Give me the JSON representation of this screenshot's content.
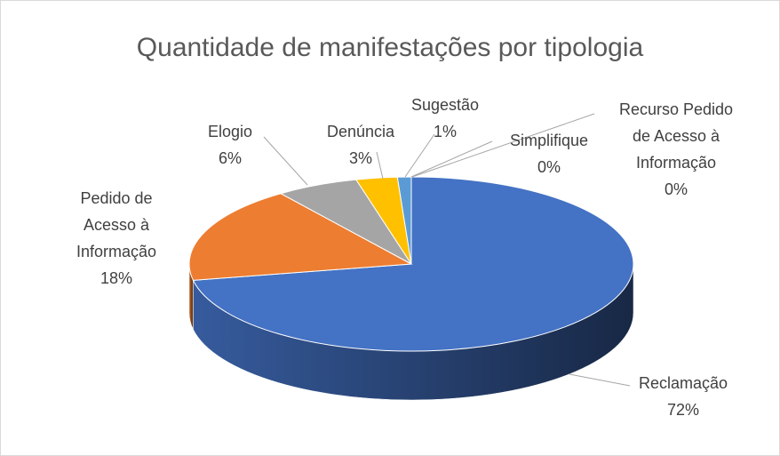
{
  "chart_data": {
    "type": "pie",
    "title": "Quantidade de manifestações por tipologia",
    "categories": [
      "Reclamação",
      "Pedido de Acesso à Informação",
      "Elogio",
      "Denúncia",
      "Sugestão",
      "Simplifique",
      "Recurso Pedido de Acesso à Informação"
    ],
    "values": [
      72,
      18,
      6,
      3,
      1,
      0,
      0
    ],
    "value_labels": [
      "72%",
      "18%",
      "6%",
      "3%",
      "1%",
      "0%",
      "0%"
    ],
    "colors": [
      "#4472c4",
      "#ed7d31",
      "#a5a5a5",
      "#ffc000",
      "#5b9bd5",
      "#70ad47",
      "#264478"
    ]
  }
}
